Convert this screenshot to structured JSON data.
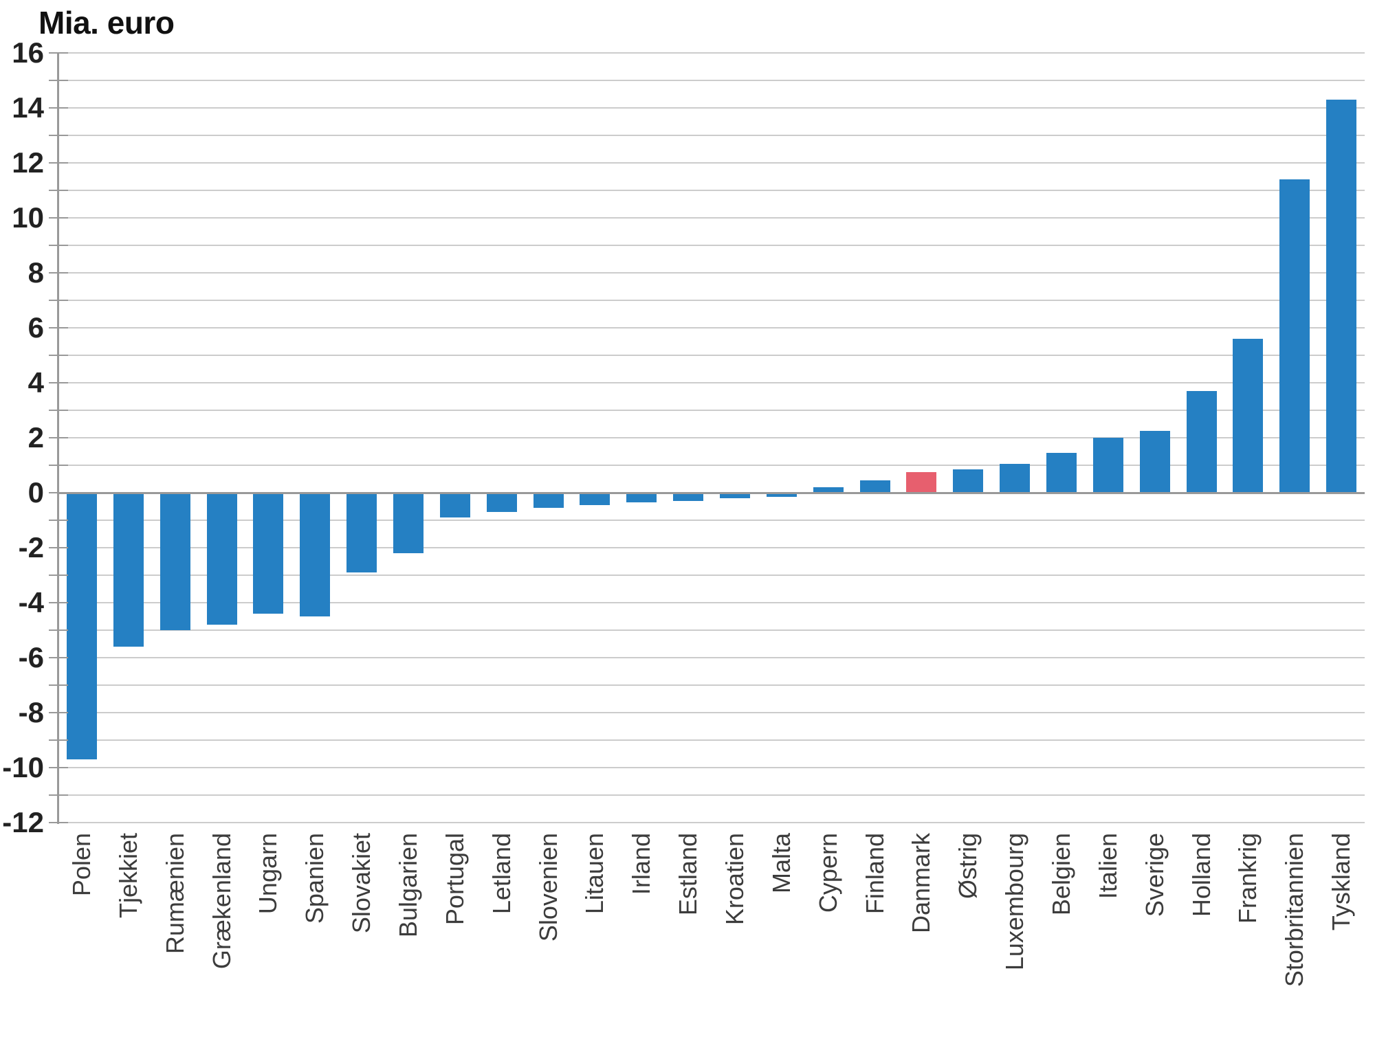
{
  "chart_data": {
    "type": "bar",
    "title": "Mia. euro",
    "categories": [
      "Polen",
      "Tjekkiet",
      "Rumænien",
      "Grækenland",
      "Ungarn",
      "Spanien",
      "Slovakiet",
      "Bulgarien",
      "Portugal",
      "Letland",
      "Slovenien",
      "Litauen",
      "Irland",
      "Estland",
      "Kroatien",
      "Malta",
      "Cypern",
      "Finland",
      "Danmark",
      "Østrig",
      "Luxembourg",
      "Belgien",
      "Italien",
      "Sverige",
      "Holland",
      "Frankrig",
      "Storbritannien",
      "Tyskland"
    ],
    "values": [
      -9.7,
      -5.6,
      -5.0,
      -4.8,
      -4.4,
      -4.5,
      -2.9,
      -2.2,
      -0.9,
      -0.7,
      -0.55,
      -0.45,
      -0.35,
      -0.3,
      -0.2,
      -0.15,
      0.2,
      0.45,
      0.75,
      0.85,
      1.05,
      1.45,
      2.0,
      2.25,
      3.7,
      5.6,
      11.4,
      14.3
    ],
    "highlighted_category": "Danmark",
    "ylim": [
      -12,
      16
    ],
    "ytick_labels": [
      "16",
      "14",
      "12",
      "10",
      "8",
      "6",
      "4",
      "2",
      "0",
      "-2",
      "-4",
      "-6",
      "-8",
      "-10",
      "-12"
    ],
    "gridline_step": 1,
    "grid": true,
    "legend": "none",
    "xlabel": "",
    "ylabel": "Mia. euro",
    "colors": {
      "bar": "#2580c3",
      "highlight": "#e75f6e",
      "gridline": "#cccccc",
      "zero_line": "#999999",
      "axis": "#999999",
      "title_text": "#111111",
      "ytick_text": "#222222",
      "xtick_text": "#3c3c3c"
    }
  }
}
